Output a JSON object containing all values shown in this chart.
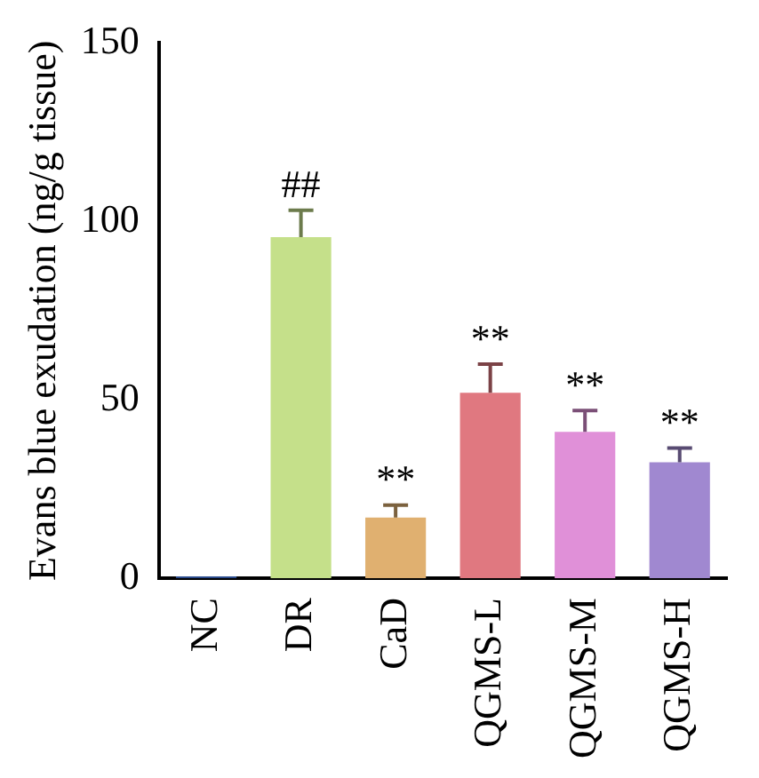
{
  "chart_data": {
    "type": "bar",
    "ylabel": "Evans blue exudation (ng/g tissue)",
    "categories": [
      "NC",
      "DR",
      "CaD",
      "QGMS-L",
      "QGMS-M",
      "QGMS-H"
    ],
    "values": [
      0.5,
      95.6,
      17,
      52,
      41,
      32.5
    ],
    "errors": [
      null,
      7.5,
      3.5,
      8,
      6,
      4
    ],
    "colors": [
      "#2a4b8c",
      "#c5e08a",
      "#e0b070",
      "#e07880",
      "#e090d8",
      "#a088d0"
    ],
    "ylim": [
      0,
      150
    ],
    "yticks": [
      0,
      50,
      100,
      150
    ],
    "annotations": [
      {
        "text": "##",
        "x": "DR",
        "y": 103.1
      },
      {
        "text": "**",
        "x": "CaD",
        "y": 20.5
      },
      {
        "text": "**",
        "x": "QGMS-L",
        "y": 60
      },
      {
        "text": "**",
        "x": "QGMS-M",
        "y": 47
      },
      {
        "text": "**",
        "x": "QGMS-H",
        "y": 36.5
      }
    ]
  }
}
